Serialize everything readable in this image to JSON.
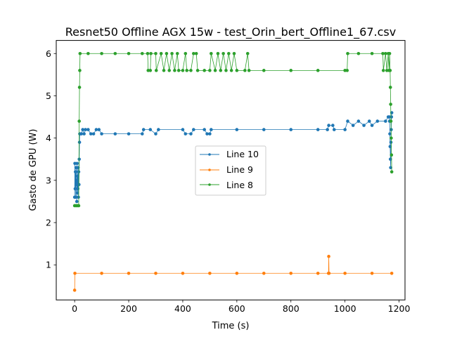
{
  "chart_data": {
    "type": "line",
    "title": "Resnet50 Offline AGX 15w - test_Orin_bert_Offline1_67.csv",
    "xlabel": "Time (s)",
    "ylabel": "Gasto de GPU (W)",
    "xlim": [
      -68,
      1222
    ],
    "ylim": [
      0.17,
      6.31
    ],
    "xticks": [
      0,
      200,
      400,
      600,
      800,
      1000,
      1200
    ],
    "yticks": [
      1,
      2,
      3,
      4,
      5,
      6
    ],
    "grid": false,
    "legend_position": "center",
    "series": [
      {
        "name": "Line 10",
        "color": "#1f77b4",
        "points": [
          [
            0,
            2.6
          ],
          [
            1,
            3.4
          ],
          [
            2,
            2.8
          ],
          [
            3,
            3.2
          ],
          [
            4,
            2.6
          ],
          [
            5,
            3.3
          ],
          [
            6,
            2.9
          ],
          [
            7,
            3.0
          ],
          [
            8,
            2.5
          ],
          [
            9,
            3.4
          ],
          [
            10,
            2.7
          ],
          [
            11,
            3.1
          ],
          [
            12,
            2.8
          ],
          [
            13,
            3.3
          ],
          [
            14,
            2.6
          ],
          [
            15,
            3.2
          ],
          [
            16,
            2.9
          ],
          [
            17,
            3.5
          ],
          [
            18,
            3.9
          ],
          [
            19,
            4.1
          ],
          [
            20,
            4.1
          ],
          [
            25,
            4.1
          ],
          [
            30,
            4.2
          ],
          [
            35,
            4.1
          ],
          [
            40,
            4.2
          ],
          [
            50,
            4.2
          ],
          [
            60,
            4.1
          ],
          [
            70,
            4.1
          ],
          [
            80,
            4.2
          ],
          [
            90,
            4.2
          ],
          [
            100,
            4.1
          ],
          [
            150,
            4.1
          ],
          [
            200,
            4.1
          ],
          [
            250,
            4.1
          ],
          [
            255,
            4.2
          ],
          [
            280,
            4.2
          ],
          [
            300,
            4.1
          ],
          [
            310,
            4.2
          ],
          [
            400,
            4.2
          ],
          [
            410,
            4.1
          ],
          [
            430,
            4.1
          ],
          [
            440,
            4.2
          ],
          [
            480,
            4.2
          ],
          [
            490,
            4.1
          ],
          [
            500,
            4.1
          ],
          [
            505,
            4.2
          ],
          [
            600,
            4.2
          ],
          [
            700,
            4.2
          ],
          [
            800,
            4.2
          ],
          [
            900,
            4.2
          ],
          [
            935,
            4.2
          ],
          [
            940,
            4.3
          ],
          [
            955,
            4.3
          ],
          [
            960,
            4.2
          ],
          [
            1000,
            4.2
          ],
          [
            1010,
            4.4
          ],
          [
            1030,
            4.3
          ],
          [
            1050,
            4.4
          ],
          [
            1070,
            4.3
          ],
          [
            1090,
            4.4
          ],
          [
            1100,
            4.3
          ],
          [
            1120,
            4.4
          ],
          [
            1150,
            4.4
          ],
          [
            1160,
            4.5
          ],
          [
            1164,
            4.5
          ],
          [
            1165,
            4.4
          ],
          [
            1166,
            4.1
          ],
          [
            1167,
            3.8
          ],
          [
            1168,
            3.5
          ],
          [
            1169,
            3.3
          ],
          [
            1170,
            3.9
          ],
          [
            1171,
            4.2
          ],
          [
            1172,
            4.5
          ],
          [
            1173,
            4.6
          ]
        ]
      },
      {
        "name": "Line 9",
        "color": "#ff7f0e",
        "points": [
          [
            0,
            0.4
          ],
          [
            1,
            0.8
          ],
          [
            100,
            0.8
          ],
          [
            200,
            0.8
          ],
          [
            300,
            0.8
          ],
          [
            400,
            0.8
          ],
          [
            500,
            0.8
          ],
          [
            600,
            0.8
          ],
          [
            700,
            0.8
          ],
          [
            800,
            0.8
          ],
          [
            900,
            0.8
          ],
          [
            939,
            0.8
          ],
          [
            940,
            1.2
          ],
          [
            941,
            0.8
          ],
          [
            1000,
            0.8
          ],
          [
            1100,
            0.8
          ],
          [
            1173,
            0.8
          ]
        ]
      },
      {
        "name": "Line 8",
        "color": "#2ca02c",
        "points": [
          [
            0,
            2.4
          ],
          [
            5,
            2.4
          ],
          [
            10,
            2.4
          ],
          [
            15,
            2.4
          ],
          [
            17,
            4.4
          ],
          [
            18,
            5.2
          ],
          [
            19,
            5.6
          ],
          [
            20,
            6.0
          ],
          [
            50,
            6.0
          ],
          [
            100,
            6.0
          ],
          [
            150,
            6.0
          ],
          [
            200,
            6.0
          ],
          [
            250,
            6.0
          ],
          [
            270,
            6.0
          ],
          [
            272,
            5.6
          ],
          [
            280,
            5.6
          ],
          [
            282,
            6.0
          ],
          [
            300,
            6.0
          ],
          [
            302,
            5.6
          ],
          [
            320,
            6.0
          ],
          [
            330,
            5.6
          ],
          [
            340,
            6.0
          ],
          [
            350,
            5.6
          ],
          [
            360,
            6.0
          ],
          [
            370,
            5.6
          ],
          [
            380,
            6.0
          ],
          [
            385,
            5.6
          ],
          [
            400,
            5.6
          ],
          [
            410,
            6.0
          ],
          [
            415,
            5.6
          ],
          [
            430,
            5.6
          ],
          [
            440,
            6.0
          ],
          [
            450,
            6.0
          ],
          [
            455,
            5.6
          ],
          [
            480,
            5.6
          ],
          [
            500,
            5.6
          ],
          [
            505,
            6.0
          ],
          [
            520,
            5.6
          ],
          [
            530,
            6.0
          ],
          [
            540,
            5.6
          ],
          [
            550,
            6.0
          ],
          [
            560,
            5.6
          ],
          [
            570,
            6.0
          ],
          [
            580,
            5.6
          ],
          [
            590,
            6.0
          ],
          [
            600,
            5.6
          ],
          [
            630,
            5.6
          ],
          [
            640,
            6.0
          ],
          [
            645,
            5.6
          ],
          [
            700,
            5.6
          ],
          [
            800,
            5.6
          ],
          [
            900,
            5.6
          ],
          [
            1000,
            5.6
          ],
          [
            1008,
            5.6
          ],
          [
            1010,
            6.0
          ],
          [
            1050,
            6.0
          ],
          [
            1100,
            6.0
          ],
          [
            1140,
            6.0
          ],
          [
            1142,
            5.6
          ],
          [
            1150,
            6.0
          ],
          [
            1155,
            5.6
          ],
          [
            1160,
            6.0
          ],
          [
            1163,
            5.6
          ],
          [
            1165,
            6.0
          ],
          [
            1167,
            5.6
          ],
          [
            1168,
            5.2
          ],
          [
            1169,
            4.8
          ],
          [
            1170,
            4.4
          ],
          [
            1171,
            4.0
          ],
          [
            1172,
            3.6
          ],
          [
            1173,
            3.2
          ]
        ]
      }
    ]
  }
}
